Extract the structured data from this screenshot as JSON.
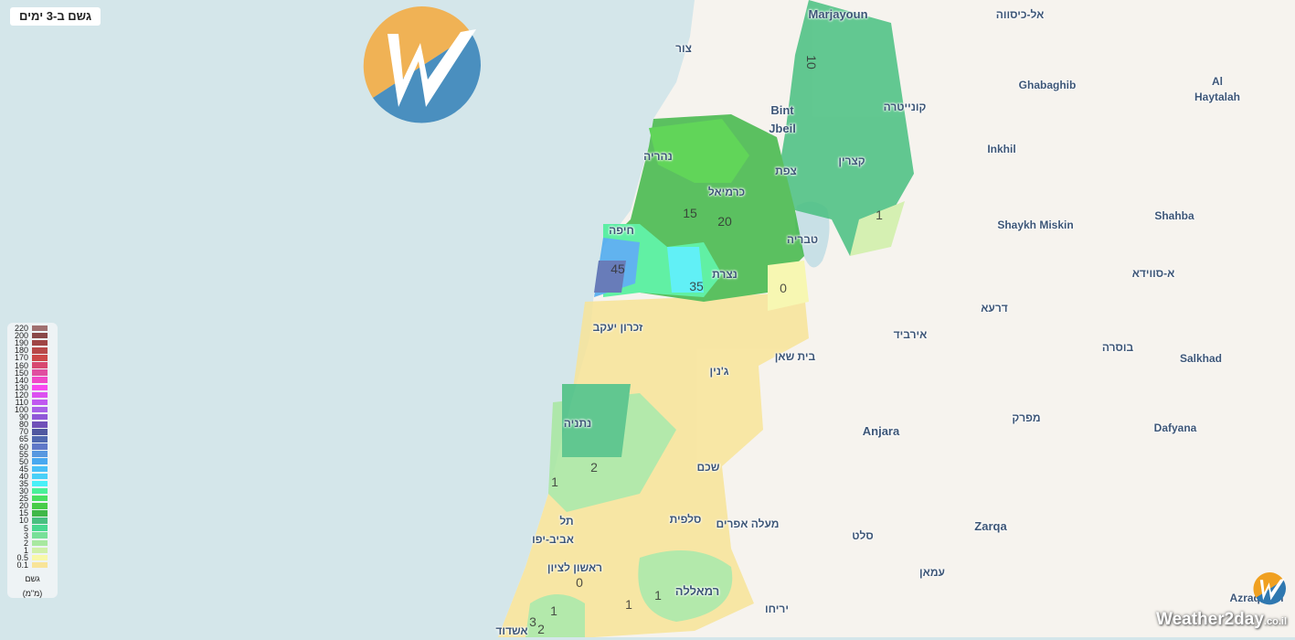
{
  "title": "גשם ב-3 ימים",
  "colors": {
    "sea": "#d4e6ea",
    "land": "#f6f3ee",
    "logo_orange": "#f0b255",
    "logo_blue": "#4a8fbf"
  },
  "legend": {
    "label": "גשם",
    "unit": "(מ\"מ)",
    "items": [
      {
        "v": "220",
        "c": "#a07070"
      },
      {
        "v": "200",
        "c": "#8a4848"
      },
      {
        "v": "190",
        "c": "#a04545"
      },
      {
        "v": "180",
        "c": "#b84848"
      },
      {
        "v": "170",
        "c": "#cc4848"
      },
      {
        "v": "160",
        "c": "#d84870"
      },
      {
        "v": "150",
        "c": "#e04ea0"
      },
      {
        "v": "140",
        "c": "#f048c8"
      },
      {
        "v": "130",
        "c": "#f848f0"
      },
      {
        "v": "120",
        "c": "#dc50f0"
      },
      {
        "v": "110",
        "c": "#c058f0"
      },
      {
        "v": "100",
        "c": "#a860e8"
      },
      {
        "v": "90",
        "c": "#9058d8"
      },
      {
        "v": "80",
        "c": "#7050b8"
      },
      {
        "v": "70",
        "c": "#5058a0"
      },
      {
        "v": "65",
        "c": "#5068b0"
      },
      {
        "v": "60",
        "c": "#6078c8"
      },
      {
        "v": "55",
        "c": "#5898e0"
      },
      {
        "v": "50",
        "c": "#48a8f0"
      },
      {
        "v": "45",
        "c": "#48c0f8"
      },
      {
        "v": "40",
        "c": "#48d0f8"
      },
      {
        "v": "35",
        "c": "#48f0f8"
      },
      {
        "v": "30",
        "c": "#48f098"
      },
      {
        "v": "25",
        "c": "#48e060"
      },
      {
        "v": "20",
        "c": "#48cc48"
      },
      {
        "v": "15",
        "c": "#40b848"
      },
      {
        "v": "10",
        "c": "#48c080"
      },
      {
        "v": "5",
        "c": "#48d890"
      },
      {
        "v": "3",
        "c": "#78e098"
      },
      {
        "v": "2",
        "c": "#a8e8a0"
      },
      {
        "v": "1",
        "c": "#d0f0a8"
      },
      {
        "v": "0.5",
        "c": "#f8f8a8"
      },
      {
        "v": "0.1",
        "c": "#f8e498"
      }
    ]
  },
  "places": [
    "Marjayoun",
    "צור",
    "אל-כיסווה",
    "Ghabaghib",
    "Al",
    "Haytalah",
    "Bint",
    "Jbeil",
    "קונייטרה",
    "Inkhil",
    "נהריה",
    "צפת",
    "קצרין",
    "כרמיאל",
    "Shaykh Miskin",
    "Shahba",
    "חיפה",
    "טבריה",
    "א-סווידא",
    "נצרת",
    "דרעא",
    "זכרון יעקב",
    "אירביד",
    "בית שאן",
    "בוסרה",
    "Salkhad",
    "ג'נין",
    "מפרק",
    "נתניה",
    "Anjara",
    "Dafyana",
    "שכם",
    "סלפית",
    "מעלה אפרים",
    "תל",
    "אביב-יפו",
    "סלט",
    "Zarqa",
    "ראשון לציון",
    "רמאללה",
    "עמאן",
    "יריחו",
    "אשדוד",
    "Azraq Ash"
  ],
  "contours": [
    "10",
    "15",
    "20",
    "1",
    "45",
    "35",
    "0",
    "1",
    "2",
    "0",
    "1",
    "1",
    "1",
    "3",
    "2"
  ],
  "watermark": {
    "brand": "Weather2day",
    "suffix": "co.il"
  }
}
